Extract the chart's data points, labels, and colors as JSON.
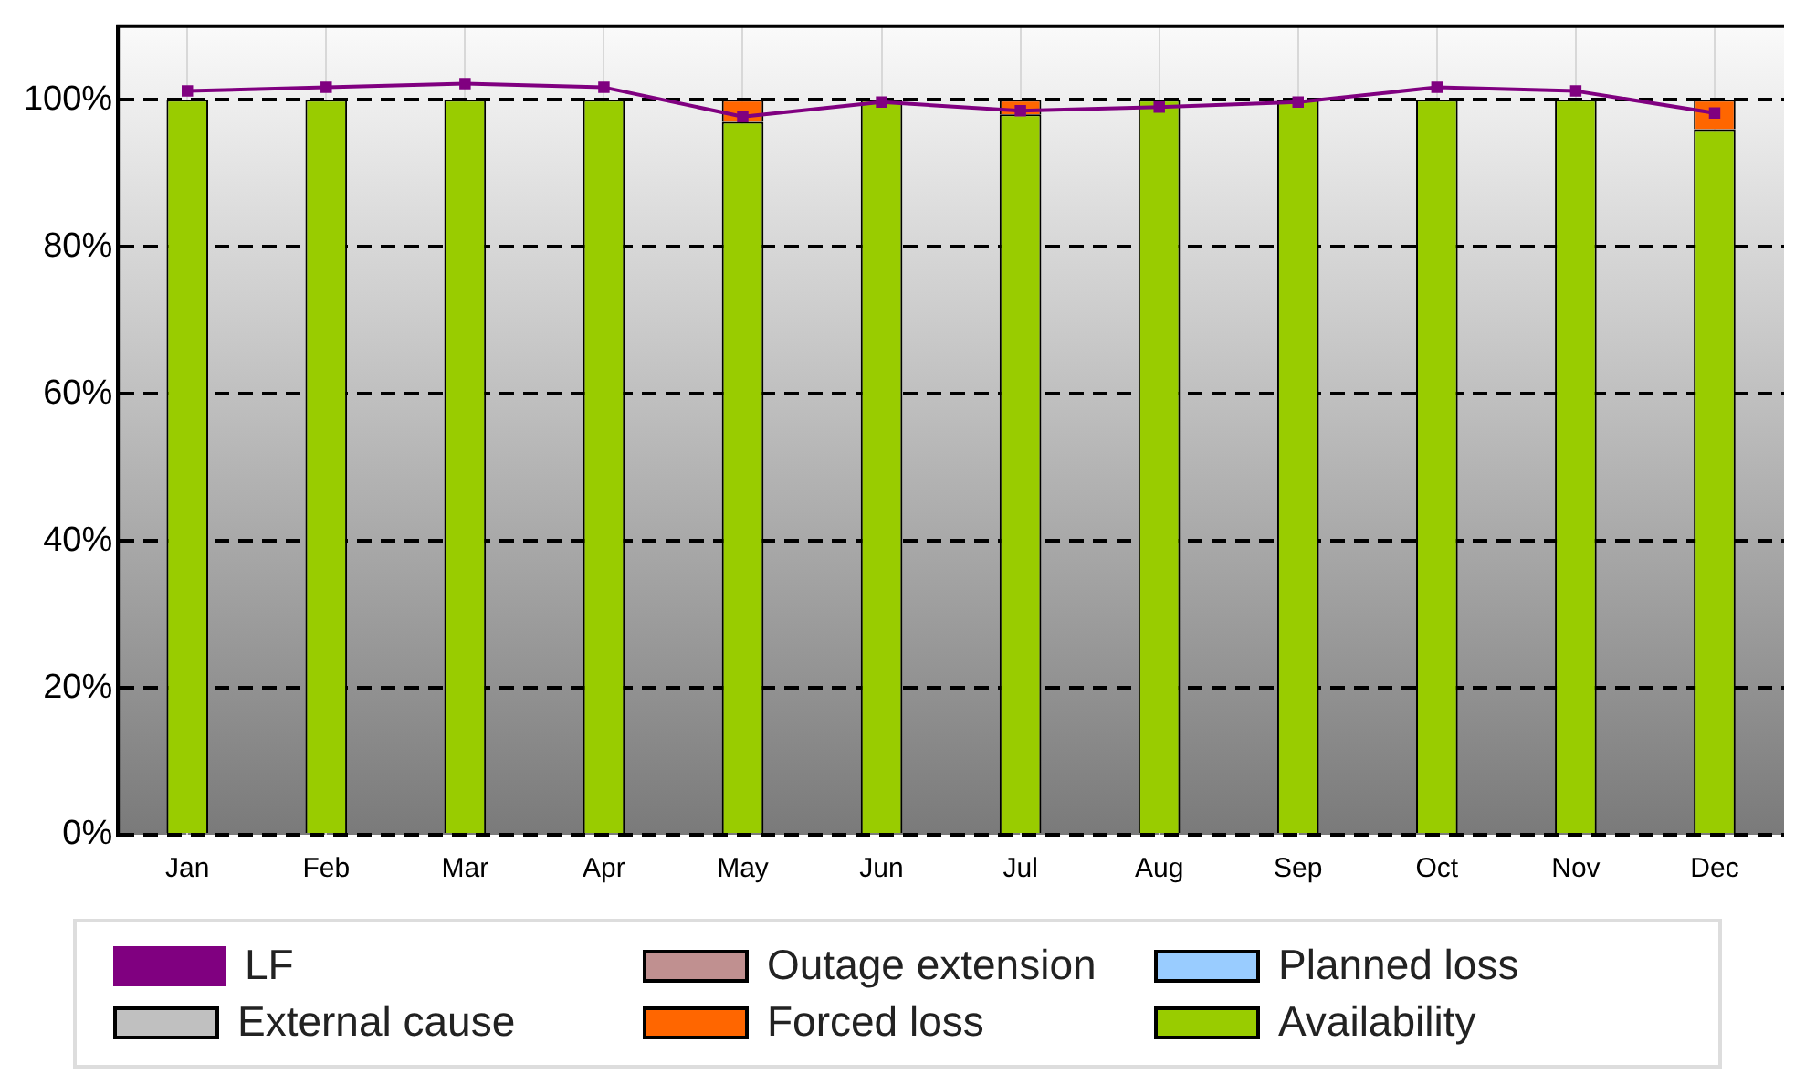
{
  "chart_data": {
    "type": "bar",
    "stacked": true,
    "categories": [
      "Jan",
      "Feb",
      "Mar",
      "Apr",
      "May",
      "Jun",
      "Jul",
      "Aug",
      "Sep",
      "Oct",
      "Nov",
      "Dec"
    ],
    "series": [
      {
        "name": "Availability",
        "color": "#99cc00",
        "values": [
          100,
          100,
          100,
          100,
          97,
          100,
          98,
          100,
          100,
          100,
          100,
          96
        ]
      },
      {
        "name": "Forced loss",
        "color": "#ff6600",
        "values": [
          0,
          0,
          0,
          0,
          3,
          0,
          2,
          0,
          0,
          0,
          0,
          4
        ]
      },
      {
        "name": "External cause",
        "color": "#c0c0c0",
        "values": [
          0,
          0,
          0,
          0,
          0,
          0,
          0,
          0,
          0,
          0,
          0,
          0
        ]
      },
      {
        "name": "Outage extension",
        "color": "#c09090",
        "values": [
          0,
          0,
          0,
          0,
          0,
          0,
          0,
          0,
          0,
          0,
          0,
          0
        ]
      },
      {
        "name": "Planned loss",
        "color": "#99ccff",
        "values": [
          0,
          0,
          0,
          0,
          0,
          0,
          0,
          0,
          0,
          0,
          0,
          0
        ]
      },
      {
        "name": "LF",
        "type": "line",
        "color": "#800080",
        "values": [
          101.2,
          101.7,
          102.2,
          101.7,
          97.7,
          99.7,
          98.5,
          99,
          99.7,
          101.7,
          101.2,
          98.2
        ]
      }
    ],
    "ylim": [
      0,
      110
    ],
    "yticks": [
      {
        "value": 0,
        "label": "0%"
      },
      {
        "value": 20,
        "label": "20%"
      },
      {
        "value": 40,
        "label": "40%"
      },
      {
        "value": 60,
        "label": "60%"
      },
      {
        "value": 80,
        "label": "80%"
      },
      {
        "value": 100,
        "label": "100%"
      }
    ],
    "grid": true,
    "legend": "bottom",
    "marker": "square"
  }
}
